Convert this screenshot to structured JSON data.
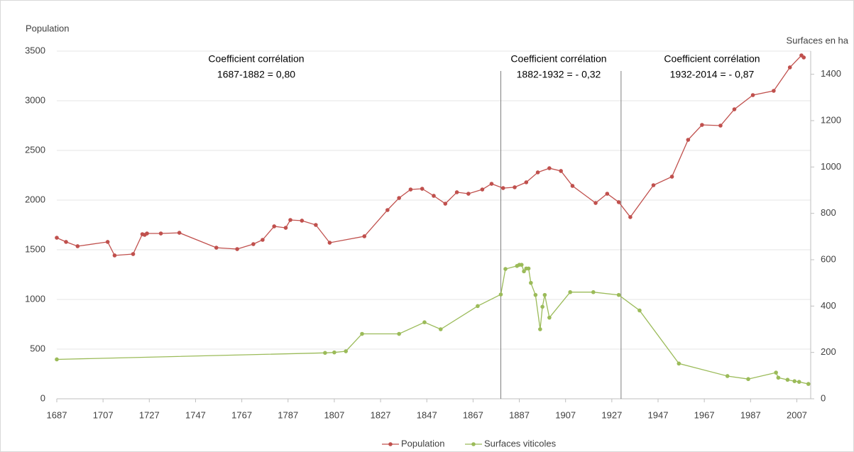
{
  "chart_data": {
    "type": "line",
    "y_label": "Population",
    "y2_label": "Surfaces en ha",
    "annotations": [
      [
        "Coefficient corrélation",
        "1687-1882 = 0,80"
      ],
      [
        "Coefficient corrélation",
        "1882-1932 = - 0,32"
      ],
      [
        "Coefficient corrélation",
        "1932-2014 = - 0,87"
      ]
    ],
    "vlines": [
      1879,
      1931
    ],
    "xlim": [
      1687,
      2013
    ],
    "xticks": [
      1687,
      1707,
      1727,
      1747,
      1767,
      1787,
      1807,
      1827,
      1847,
      1867,
      1887,
      1907,
      1927,
      1947,
      1967,
      1987,
      2007
    ],
    "ylim": [
      0,
      3500
    ],
    "yticks": [
      0,
      500,
      1000,
      1500,
      2000,
      2500,
      3000,
      3500
    ],
    "y2lim": [
      0,
      1500
    ],
    "y2ticks": [
      0,
      200,
      400,
      600,
      800,
      1000,
      1200,
      1400
    ],
    "grid": true,
    "legend": "bottom",
    "series": [
      {
        "name": "Population",
        "color": "#c0504d",
        "x": [
          1687,
          1691,
          1696,
          1709,
          1712,
          1720,
          1724,
          1725,
          1726,
          1732,
          1740,
          1756,
          1765,
          1772,
          1776,
          1781,
          1786,
          1788,
          1793,
          1799,
          1805,
          1820,
          1830,
          1835,
          1840,
          1845,
          1850,
          1855,
          1860,
          1865,
          1871,
          1875,
          1880,
          1885,
          1890,
          1895,
          1900,
          1905,
          1910,
          1920,
          1925,
          1930,
          1935,
          1945,
          1953,
          1960,
          1966,
          1974,
          1980,
          1988,
          1997,
          2004,
          2009,
          2010
        ],
        "values": [
          1621,
          1579,
          1536,
          1579,
          1443,
          1457,
          1657,
          1650,
          1664,
          1664,
          1671,
          1521,
          1507,
          1557,
          1600,
          1736,
          1721,
          1800,
          1793,
          1750,
          1571,
          1636,
          1900,
          2021,
          2107,
          2114,
          2043,
          1964,
          2079,
          2064,
          2107,
          2164,
          2121,
          2129,
          2179,
          2279,
          2321,
          2293,
          2143,
          1971,
          2064,
          1979,
          1829,
          2150,
          2236,
          2607,
          2757,
          2750,
          2914,
          3057,
          3100,
          3336,
          3457,
          3436
        ]
      },
      {
        "name": "Surfaces viticoles",
        "color": "#9bbb59",
        "axis": "y2",
        "x": [
          1687,
          1803,
          1807,
          1812,
          1819,
          1835,
          1846,
          1853,
          1869,
          1879,
          1881,
          1886,
          1887,
          1888,
          1889,
          1890,
          1891,
          1892,
          1894,
          1896,
          1897,
          1898,
          1900,
          1909,
          1919,
          1930,
          1939,
          1956,
          1977,
          1986,
          1998,
          1999,
          2003,
          2006,
          2008,
          2012
        ],
        "values": [
          170,
          198,
          200,
          205,
          280,
          280,
          330,
          300,
          400,
          450,
          560,
          573,
          578,
          578,
          550,
          562,
          562,
          500,
          448,
          300,
          397,
          448,
          350,
          460,
          460,
          448,
          381,
          152,
          98,
          85,
          113,
          91,
          82,
          76,
          73,
          64
        ]
      }
    ]
  }
}
